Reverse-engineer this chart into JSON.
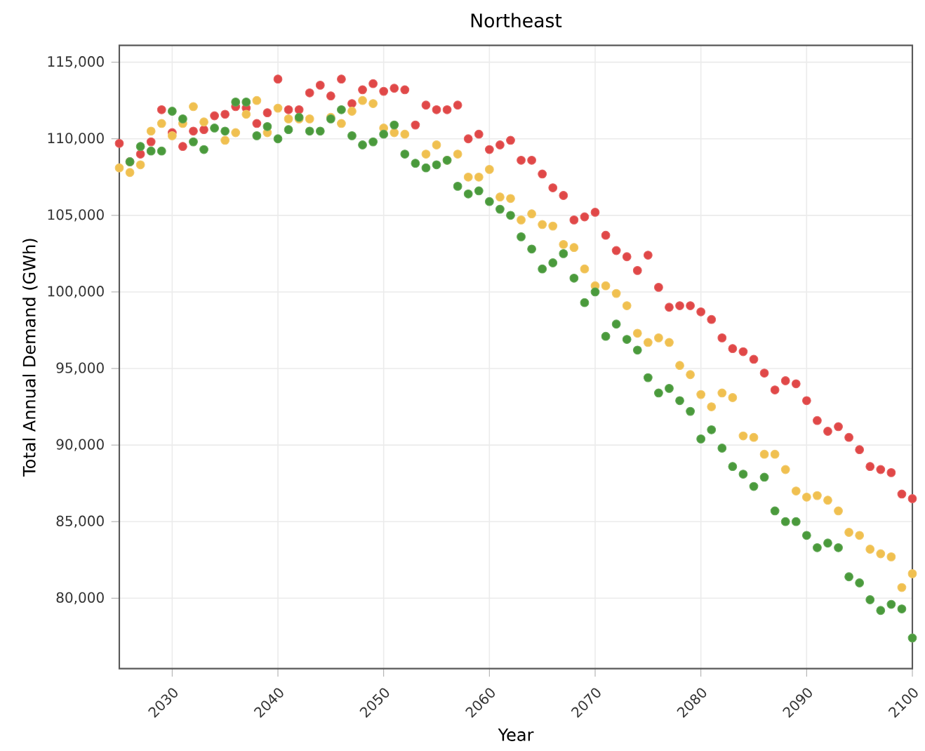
{
  "chart_data": {
    "type": "scatter",
    "title": "Northeast",
    "xlabel": "Year",
    "ylabel": "Total Annual Demand (GWh)",
    "x": [
      2025,
      2026,
      2027,
      2028,
      2029,
      2030,
      2031,
      2032,
      2033,
      2034,
      2035,
      2036,
      2037,
      2038,
      2039,
      2040,
      2041,
      2042,
      2043,
      2044,
      2045,
      2046,
      2047,
      2048,
      2049,
      2050,
      2051,
      2052,
      2053,
      2054,
      2055,
      2056,
      2057,
      2058,
      2059,
      2060,
      2061,
      2062,
      2063,
      2064,
      2065,
      2066,
      2067,
      2068,
      2069,
      2070,
      2071,
      2072,
      2073,
      2074,
      2075,
      2076,
      2077,
      2078,
      2079,
      2080,
      2081,
      2082,
      2083,
      2084,
      2085,
      2086,
      2087,
      2088,
      2089,
      2090,
      2091,
      2092,
      2093,
      2094,
      2095,
      2096,
      2097,
      2098,
      2099,
      2100
    ],
    "series": [
      {
        "color": "#e04848",
        "values": [
          109700,
          108500,
          109000,
          109800,
          111900,
          110400,
          109500,
          110500,
          110600,
          111500,
          111600,
          112100,
          112000,
          111000,
          111700,
          113900,
          111900,
          111900,
          113000,
          113500,
          112800,
          113900,
          112300,
          113200,
          113600,
          113100,
          113300,
          113200,
          110900,
          112200,
          111900,
          111900,
          112200,
          110000,
          110300,
          109300,
          109600,
          109900,
          108600,
          108600,
          107700,
          106800,
          106300,
          104700,
          104900,
          105200,
          103700,
          102700,
          102300,
          101400,
          102400,
          100300,
          99000,
          99100,
          99100,
          98700,
          98200,
          97000,
          96300,
          96100,
          95600,
          94700,
          93600,
          94200,
          94000,
          92900,
          91600,
          90900,
          91200,
          90500,
          89700,
          88600,
          88400,
          88200,
          86800,
          86500
        ]
      },
      {
        "color": "#f0c050",
        "values": [
          108100,
          107800,
          108300,
          110500,
          111000,
          110200,
          111000,
          112100,
          111100,
          null,
          109900,
          110400,
          111600,
          112500,
          110400,
          112000,
          111300,
          111300,
          111300,
          null,
          111400,
          111000,
          111800,
          112500,
          112300,
          110700,
          110400,
          110300,
          null,
          109000,
          109600,
          108600,
          109000,
          107500,
          107500,
          108000,
          106200,
          106100,
          104700,
          105100,
          104400,
          104300,
          103100,
          102900,
          101500,
          100400,
          100400,
          99900,
          99100,
          97300,
          96700,
          97000,
          96700,
          95200,
          94600,
          93300,
          92500,
          93400,
          93100,
          90600,
          90500,
          89400,
          89400,
          88400,
          87000,
          86600,
          86700,
          86400,
          85700,
          84300,
          84100,
          83200,
          82900,
          82700,
          80700,
          81600
        ]
      },
      {
        "color": "#4a9a3c",
        "values": [
          null,
          108500,
          109500,
          109200,
          109200,
          111800,
          111300,
          109800,
          109300,
          110700,
          110500,
          112400,
          112400,
          110200,
          110800,
          110000,
          110600,
          111400,
          110500,
          110500,
          111300,
          111900,
          110200,
          109600,
          109800,
          110300,
          110900,
          109000,
          108400,
          108100,
          108300,
          108600,
          106900,
          106400,
          106600,
          105900,
          105400,
          105000,
          103600,
          102800,
          101500,
          101900,
          102500,
          100900,
          99300,
          100000,
          97100,
          97900,
          96900,
          96200,
          94400,
          93400,
          93700,
          92900,
          92200,
          90400,
          91000,
          89800,
          88600,
          88100,
          87300,
          87900,
          85700,
          85000,
          85000,
          84100,
          83300,
          83600,
          83300,
          81400,
          81000,
          79900,
          79200,
          79600,
          79300,
          77400
        ]
      }
    ],
    "xlim": [
      2025,
      2100
    ],
    "ylim": [
      75400,
      116100
    ],
    "xticks": [
      2030,
      2040,
      2050,
      2060,
      2070,
      2080,
      2090,
      2100
    ],
    "yticks": [
      {
        "value": 80000,
        "label": "80,000"
      },
      {
        "value": 85000,
        "label": "85,000"
      },
      {
        "value": 90000,
        "label": "90,000"
      },
      {
        "value": 95000,
        "label": "95,000"
      },
      {
        "value": 100000,
        "label": "100,000"
      },
      {
        "value": 105000,
        "label": "105,000"
      },
      {
        "value": 110000,
        "label": "110,000"
      },
      {
        "value": 115000,
        "label": "115,000"
      }
    ],
    "grid": true
  }
}
